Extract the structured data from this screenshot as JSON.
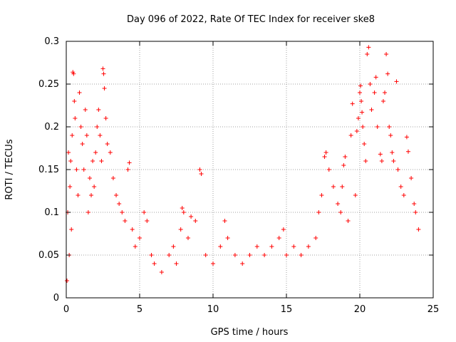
{
  "chart_data": {
    "type": "scatter",
    "title": "Day 096 of 2022, Rate Of TEC Index for receiver ske8",
    "xlabel": "GPS time / hours",
    "ylabel": "ROTI / TECUs",
    "xlim": [
      0,
      25
    ],
    "ylim": [
      0,
      0.3
    ],
    "x_ticks": [
      0,
      5,
      10,
      15,
      20,
      25
    ],
    "x_tick_labels": [
      "0",
      "5",
      "10",
      "15",
      "20",
      "25"
    ],
    "y_ticks": [
      0,
      0.05,
      0.1,
      0.15,
      0.2,
      0.25,
      0.3
    ],
    "y_tick_labels": [
      "0",
      "0.05",
      "0.1",
      "0.15",
      "0.2",
      "0.25",
      "0.3"
    ],
    "grid": true,
    "marker": "+",
    "color": "#ff0000",
    "series": [
      {
        "points": [
          [
            0.05,
            0.02
          ],
          [
            0.1,
            0.1
          ],
          [
            0.15,
            0.17
          ],
          [
            0.2,
            0.05
          ],
          [
            0.25,
            0.13
          ],
          [
            0.3,
            0.16
          ],
          [
            0.35,
            0.08
          ],
          [
            0.4,
            0.19
          ],
          [
            0.45,
            0.264
          ],
          [
            0.5,
            0.262
          ],
          [
            0.55,
            0.23
          ],
          [
            0.6,
            0.21
          ],
          [
            0.7,
            0.15
          ],
          [
            0.8,
            0.12
          ],
          [
            0.9,
            0.24
          ],
          [
            1.0,
            0.2
          ],
          [
            1.1,
            0.18
          ],
          [
            1.2,
            0.15
          ],
          [
            1.3,
            0.22
          ],
          [
            1.4,
            0.19
          ],
          [
            1.5,
            0.1
          ],
          [
            1.6,
            0.14
          ],
          [
            1.7,
            0.12
          ],
          [
            1.8,
            0.16
          ],
          [
            1.9,
            0.13
          ],
          [
            2.0,
            0.17
          ],
          [
            2.1,
            0.2
          ],
          [
            2.2,
            0.22
          ],
          [
            2.3,
            0.19
          ],
          [
            2.4,
            0.16
          ],
          [
            2.5,
            0.268
          ],
          [
            2.55,
            0.262
          ],
          [
            2.6,
            0.245
          ],
          [
            2.7,
            0.21
          ],
          [
            2.8,
            0.18
          ],
          [
            3.0,
            0.17
          ],
          [
            3.2,
            0.14
          ],
          [
            3.4,
            0.12
          ],
          [
            3.6,
            0.11
          ],
          [
            3.8,
            0.1
          ],
          [
            4.0,
            0.09
          ],
          [
            4.2,
            0.15
          ],
          [
            4.3,
            0.158
          ],
          [
            4.5,
            0.08
          ],
          [
            4.7,
            0.06
          ],
          [
            5.0,
            0.07
          ],
          [
            5.3,
            0.1
          ],
          [
            5.5,
            0.09
          ],
          [
            5.8,
            0.05
          ],
          [
            6.0,
            0.04
          ],
          [
            6.5,
            0.03
          ],
          [
            7.0,
            0.05
          ],
          [
            7.3,
            0.06
          ],
          [
            7.5,
            0.04
          ],
          [
            7.8,
            0.08
          ],
          [
            7.9,
            0.105
          ],
          [
            8.0,
            0.1
          ],
          [
            8.3,
            0.07
          ],
          [
            8.5,
            0.095
          ],
          [
            8.8,
            0.09
          ],
          [
            9.1,
            0.15
          ],
          [
            9.2,
            0.145
          ],
          [
            9.5,
            0.05
          ],
          [
            10.0,
            0.04
          ],
          [
            10.5,
            0.06
          ],
          [
            10.8,
            0.09
          ],
          [
            11.0,
            0.07
          ],
          [
            11.5,
            0.05
          ],
          [
            12.0,
            0.04
          ],
          [
            12.5,
            0.05
          ],
          [
            13.0,
            0.06
          ],
          [
            13.5,
            0.05
          ],
          [
            14.0,
            0.06
          ],
          [
            14.5,
            0.07
          ],
          [
            14.8,
            0.08
          ],
          [
            15.0,
            0.05
          ],
          [
            15.5,
            0.06
          ],
          [
            16.0,
            0.05
          ],
          [
            16.5,
            0.06
          ],
          [
            17.0,
            0.07
          ],
          [
            17.2,
            0.1
          ],
          [
            17.4,
            0.12
          ],
          [
            17.6,
            0.165
          ],
          [
            17.7,
            0.17
          ],
          [
            17.9,
            0.15
          ],
          [
            18.2,
            0.13
          ],
          [
            18.5,
            0.11
          ],
          [
            18.7,
            0.1
          ],
          [
            18.8,
            0.13
          ],
          [
            18.9,
            0.155
          ],
          [
            19.0,
            0.165
          ],
          [
            19.2,
            0.09
          ],
          [
            19.4,
            0.19
          ],
          [
            19.5,
            0.227
          ],
          [
            19.7,
            0.12
          ],
          [
            19.8,
            0.195
          ],
          [
            19.9,
            0.21
          ],
          [
            20.0,
            0.24
          ],
          [
            20.05,
            0.248
          ],
          [
            20.1,
            0.23
          ],
          [
            20.15,
            0.217
          ],
          [
            20.2,
            0.2
          ],
          [
            20.3,
            0.18
          ],
          [
            20.4,
            0.16
          ],
          [
            20.5,
            0.285
          ],
          [
            20.6,
            0.293
          ],
          [
            20.7,
            0.25
          ],
          [
            20.8,
            0.22
          ],
          [
            21.0,
            0.24
          ],
          [
            21.1,
            0.258
          ],
          [
            21.2,
            0.2
          ],
          [
            21.4,
            0.168
          ],
          [
            21.5,
            0.16
          ],
          [
            21.6,
            0.23
          ],
          [
            21.7,
            0.24
          ],
          [
            21.8,
            0.285
          ],
          [
            21.9,
            0.262
          ],
          [
            22.0,
            0.2
          ],
          [
            22.1,
            0.19
          ],
          [
            22.2,
            0.17
          ],
          [
            22.3,
            0.16
          ],
          [
            22.5,
            0.253
          ],
          [
            22.6,
            0.15
          ],
          [
            22.8,
            0.13
          ],
          [
            23.0,
            0.12
          ],
          [
            23.2,
            0.188
          ],
          [
            23.3,
            0.171
          ],
          [
            23.5,
            0.14
          ],
          [
            23.7,
            0.11
          ],
          [
            23.8,
            0.1
          ],
          [
            24.0,
            0.08
          ]
        ]
      }
    ]
  }
}
